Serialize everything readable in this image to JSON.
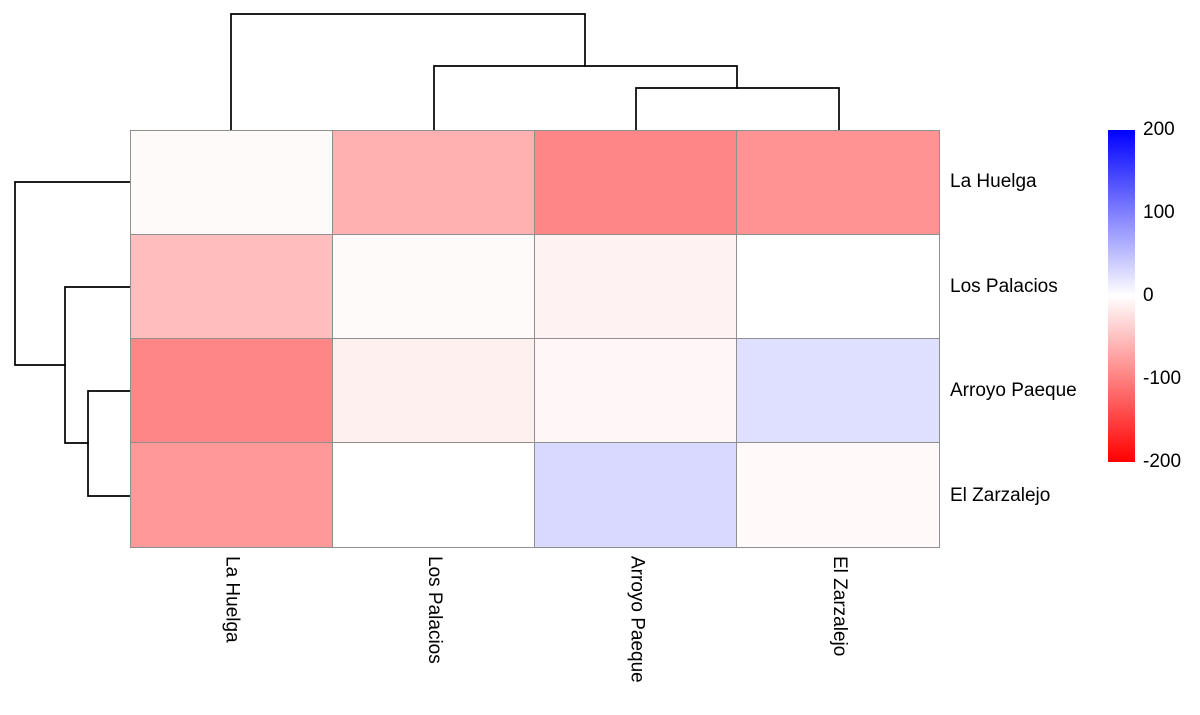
{
  "chart_data": {
    "type": "heatmap",
    "title": "",
    "rows": [
      "La Huelga",
      "Los Palacios",
      "Arroyo Paeque",
      "El Zarzalejo"
    ],
    "columns": [
      "La Huelga",
      "Los Palacios",
      "Arroyo Paeque",
      "El Zarzalejo"
    ],
    "values": [
      [
        -4,
        -62,
        -95,
        -85
      ],
      [
        -52,
        -4,
        -10,
        0
      ],
      [
        -95,
        -12,
        -6,
        25
      ],
      [
        -80,
        0,
        30,
        -5
      ]
    ],
    "scale": {
      "min": -200,
      "max": 200,
      "ticks": [
        200,
        100,
        0,
        -100,
        -200
      ],
      "negative_color": "#ff0000",
      "zero_color": "#ffffff",
      "positive_color": "#0000ff"
    },
    "legend_position": "right",
    "grid_color": "#8f8f8f",
    "dendrograms": {
      "top": {
        "clusters": "((Arroyo Paeque, El Zarzalejo), Los Palacios), La Huelga",
        "paths": [
          "M231,130 V14 H585 V66",
          "M434,130 V66 H737 V88",
          "M636,130 V88 H839 V130"
        ]
      },
      "left": {
        "clusters": "((Arroyo Paeque, El Zarzalejo), Los Palacios), La Huelga",
        "paths": [
          "M130,182 H15 V365 H65",
          "M130,287 H65 V443 H88",
          "M130,391 H88 V496 H130"
        ]
      }
    }
  }
}
